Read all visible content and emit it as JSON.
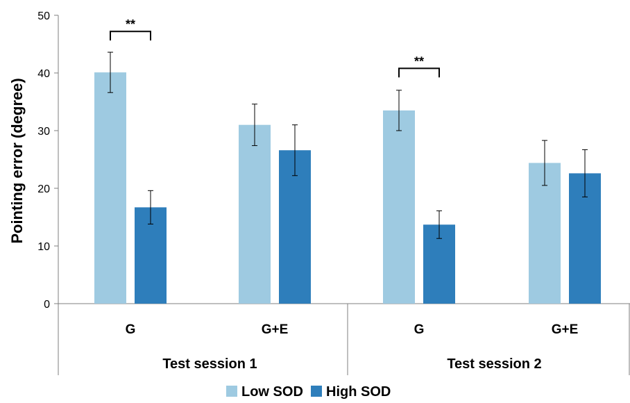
{
  "chart_data": {
    "type": "bar",
    "ylabel": "Pointing error (degree)",
    "ylim": [
      0,
      50
    ],
    "yticks": [
      0,
      10,
      20,
      30,
      40,
      50
    ],
    "grid": false,
    "legend_position": "bottom",
    "groups": [
      {
        "label": "Test session 1",
        "categories": [
          "G",
          "G+E"
        ]
      },
      {
        "label": "Test session 2",
        "categories": [
          "G",
          "G+E"
        ]
      }
    ],
    "categories": [
      "G",
      "G+E",
      "G",
      "G+E"
    ],
    "series": [
      {
        "name": "Low SOD",
        "color": "#9ECAE1",
        "values": [
          40.1,
          31.0,
          33.5,
          24.4
        ],
        "errors": [
          3.5,
          3.6,
          3.5,
          3.9
        ]
      },
      {
        "name": "High SOD",
        "color": "#2E7EBB",
        "values": [
          16.7,
          26.6,
          13.7,
          22.6
        ],
        "errors": [
          2.9,
          4.4,
          2.4,
          4.1
        ]
      }
    ],
    "annotations": [
      {
        "text": "**",
        "category_index": 0,
        "level": 47.2
      },
      {
        "text": "**",
        "category_index": 2,
        "level": 40.8
      }
    ]
  }
}
